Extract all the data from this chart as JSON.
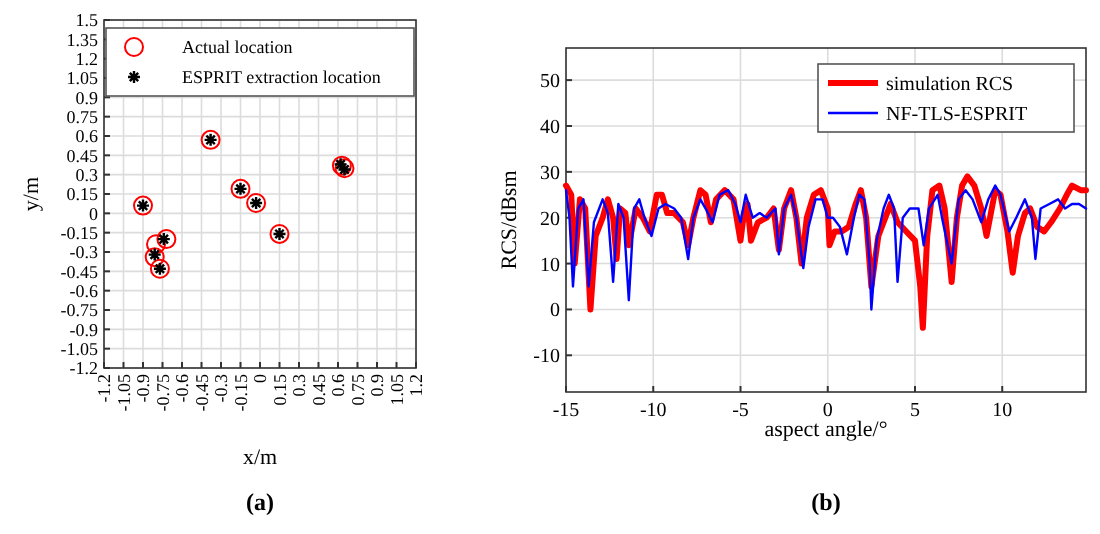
{
  "chart_data": [
    {
      "type": "scatter",
      "xlabel": "x/m",
      "ylabel": "y/m",
      "xlim": [
        -1.2,
        1.2
      ],
      "ylim": [
        -1.2,
        1.5
      ],
      "xticks": [
        -1.2,
        -1.05,
        -0.9,
        -0.75,
        -0.6,
        -0.45,
        -0.3,
        -0.15,
        0,
        0.15,
        0.3,
        0.45,
        0.6,
        0.75,
        0.9,
        1.05,
        1.2
      ],
      "yticks": [
        -1.2,
        -1.05,
        -0.9,
        -0.75,
        -0.6,
        -0.45,
        -0.3,
        -0.15,
        0,
        0.15,
        0.3,
        0.45,
        0.6,
        0.75,
        0.9,
        1.05,
        1.2,
        1.35,
        1.5
      ],
      "grid": true,
      "legend": "top",
      "annotations": [
        "(a)"
      ],
      "series": [
        {
          "name": "Actual location",
          "color": "#ff0000",
          "marker": "circle",
          "x": [
            -0.9,
            -0.8,
            -0.72,
            -0.81,
            -0.77,
            -0.38,
            -0.15,
            -0.03,
            0.15,
            0.63,
            0.65
          ],
          "values": [
            0.06,
            -0.24,
            -0.2,
            -0.34,
            -0.43,
            0.57,
            0.19,
            0.08,
            -0.16,
            0.37,
            0.35
          ]
        },
        {
          "name": "ESPRIT extraction location",
          "color": "#000000",
          "marker": "cross",
          "x": [
            -0.9,
            -0.74,
            -0.81,
            -0.77,
            -0.38,
            -0.15,
            -0.03,
            0.15,
            0.62,
            0.65
          ],
          "values": [
            0.06,
            -0.2,
            -0.32,
            -0.43,
            0.57,
            0.19,
            0.08,
            -0.16,
            0.38,
            0.34
          ]
        }
      ]
    },
    {
      "type": "line",
      "xlabel": "aspect angle/°",
      "ylabel": "RCS/dBsm",
      "xlim": [
        -15,
        14.8
      ],
      "ylim": [
        -18,
        57
      ],
      "xticks": [
        -15,
        -10,
        -5,
        0,
        5,
        10
      ],
      "yticks": [
        -10,
        0,
        10,
        20,
        30,
        40,
        50
      ],
      "grid": true,
      "legend": "top right",
      "annotations": [
        "(b)"
      ],
      "series": [
        {
          "name": "simulation RCS",
          "color": "#ff0000",
          "x": [
            -15,
            -14.7,
            -14.5,
            -14.2,
            -13.9,
            -13.6,
            -13.3,
            -12.9,
            -12.6,
            -12.3,
            -12.1,
            -11.9,
            -11.6,
            -11.4,
            -11,
            -10.6,
            -10.2,
            -9.8,
            -9.5,
            -9.2,
            -8.8,
            -8.3,
            -8,
            -7.7,
            -7.3,
            -7,
            -6.7,
            -6.4,
            -5.9,
            -5.4,
            -5,
            -4.8,
            -4.6,
            -4.4,
            -4,
            -3.5,
            -3.1,
            -2.8,
            -2.5,
            -2.1,
            -1.8,
            -1.5,
            -1.2,
            -0.8,
            -0.4,
            0,
            0.1,
            0.4,
            0.8,
            1.2,
            1.6,
            1.9,
            2.2,
            2.5,
            2.9,
            3.2,
            3.6,
            4,
            4.5,
            5,
            5.3,
            5.45,
            5.7,
            6,
            6.4,
            6.7,
            7.1,
            7.4,
            7.7,
            8,
            8.4,
            8.8,
            9.1,
            9.6,
            9.9,
            10.3,
            10.6,
            10.9,
            11.3,
            11.6,
            12,
            12.4,
            12.8,
            13.3,
            13.7,
            14,
            14.5,
            14.8
          ],
          "values": [
            27,
            25,
            10,
            24,
            22,
            0,
            16,
            20,
            24,
            20,
            11,
            22,
            21,
            14,
            22,
            20,
            17,
            25,
            25,
            21,
            21,
            19,
            14,
            20,
            26,
            25,
            19,
            24,
            26,
            24,
            15,
            21,
            23,
            15,
            19,
            20,
            22,
            13,
            22,
            26,
            20,
            10,
            20,
            25,
            26,
            22,
            14,
            17,
            17,
            18,
            23,
            26,
            20,
            5,
            16,
            19,
            23,
            19,
            17,
            15,
            5,
            -4,
            16,
            26,
            27,
            22,
            6,
            20,
            27,
            29,
            27,
            22,
            16,
            26,
            25,
            17,
            8,
            16,
            21,
            22,
            18,
            17,
            19,
            22,
            25,
            27,
            26,
            26
          ]
        },
        {
          "name": "NF-TLS-ESPRIT",
          "color": "#0000ff",
          "x": [
            -15,
            -14.8,
            -14.6,
            -14.3,
            -14,
            -13.7,
            -13.4,
            -12.9,
            -12.6,
            -12.3,
            -12,
            -11.7,
            -11.4,
            -11.1,
            -10.8,
            -10.5,
            -10.1,
            -9.7,
            -9.3,
            -8.8,
            -8.4,
            -8,
            -7.7,
            -7.3,
            -7,
            -6.6,
            -6.2,
            -5.7,
            -5.3,
            -5,
            -4.7,
            -4.3,
            -3.9,
            -3.5,
            -3,
            -2.8,
            -2.5,
            -2.1,
            -1.8,
            -1.4,
            -1.1,
            -0.7,
            -0.3,
            0,
            0.3,
            0.7,
            1.1,
            1.5,
            1.8,
            2.1,
            2.4,
            2.5,
            2.8,
            3.2,
            3.5,
            3.8,
            4,
            4.3,
            4.7,
            5.2,
            5.5,
            5.8,
            6.3,
            6.6,
            7.1,
            7.5,
            7.9,
            8.3,
            8.8,
            9.2,
            9.6,
            9.9,
            10.4,
            10.8,
            11.3,
            11.7,
            11.9,
            12.2,
            12.7,
            13.2,
            13.6,
            14,
            14.4,
            14.8
          ],
          "values": [
            26,
            20,
            5,
            22,
            24,
            5,
            19,
            24,
            21,
            6,
            23,
            20,
            2,
            22,
            24,
            20,
            16,
            22,
            23,
            22,
            20,
            11,
            20,
            24,
            22,
            19,
            25,
            26,
            23,
            19,
            25,
            20,
            21,
            20,
            22,
            12,
            22,
            25,
            20,
            9,
            18,
            24,
            24,
            20,
            20,
            18,
            12,
            20,
            25,
            24,
            10,
            0,
            15,
            22,
            25,
            22,
            6,
            20,
            22,
            22,
            14,
            22,
            25,
            19,
            10,
            24,
            26,
            24,
            19,
            24,
            27,
            25,
            17,
            20,
            24,
            20,
            11,
            22,
            23,
            24,
            22,
            23,
            23,
            22
          ]
        }
      ]
    }
  ]
}
